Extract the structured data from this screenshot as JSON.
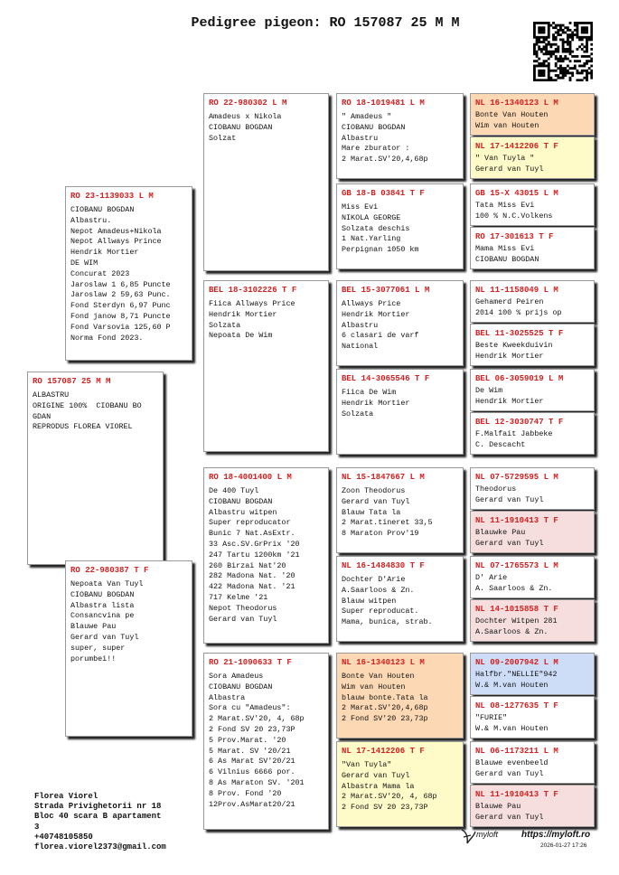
{
  "title": "Pedigree pigeon: RO 157087 25 M M",
  "generations": [
    [
      {
        "ring": "RO 157087 25 M M",
        "lines": [
          "ALBASTRU",
          "ORIGINE 100%  CIOBANU BO",
          "GDAN",
          "REPRODUS FLOREA VIOREL"
        ]
      }
    ],
    [
      {
        "ring": "RO 23-1139033 L M",
        "lines": [
          "CIOBANU BOGDAN",
          "Albastru.",
          "Nepot Amadeus+Nikola",
          "Nepot Allways Prince",
          "Hendrik Mortier",
          "DE WIM",
          "Concurat 2023",
          "Jaroslaw 1 6,85 Puncte",
          "Jaroslaw 2 59,63 Punc.",
          "Fond Sterdyn 6,97 Punc",
          "Fond janow 8,71 Puncte",
          "Fond Varsovia 125,60 P",
          "Norma Fond 2023."
        ]
      },
      {
        "ring": "RO 22-980387 T F",
        "lines": [
          "Nepoata Van Tuyl",
          "CIOBANU BOGDAN",
          "Albastra lista",
          "Consancvina pe",
          "Blauwe Pau",
          "Gerard van Tuyl",
          "super, super",
          "porumbei!!"
        ]
      }
    ],
    [
      {
        "ring": "RO 22-980302 L M",
        "lines": [
          "Amadeus x Nikola",
          "CIOBANU BOGDAN",
          "Solzat"
        ]
      },
      {
        "ring": "BEL 18-3102226 T F",
        "lines": [
          "Fiica Allways Price",
          "Hendrik Mortier",
          "Solzata",
          "Nepoata De Wim"
        ]
      },
      {
        "ring": "RO 18-4001400 L M",
        "lines": [
          "De 400 Tuyl",
          "CIOBANU BOGDAN",
          "Albastru witpen",
          "Super reproducator",
          "Bunic 7 Nat.AsExtr.",
          "33 Asc.SV.GrPrix '20",
          "247 Tartu 1200km '21",
          "260 Birzai Nat'20",
          "282 Madona Nat. '20",
          "422 Madona Nat. '21",
          "717 Kelme '21",
          "Nepot Theodorus",
          "Gerard van Tuyl"
        ]
      },
      {
        "ring": "RO 21-1090633 T F",
        "lines": [
          "Sora Amadeus",
          "CIOBANU BOGDAN",
          "Albastra",
          "Sora cu \"Amadeus\":",
          "2 Marat.SV'20, 4, 68p",
          "2 Fond SV 20 23,73P",
          "5 Prov.Marat. '20",
          "5 Marat. SV '20/21",
          "6 As Marat SV'20/21",
          "6 Vilnius 6666 por.",
          "8 As Maraton SV. '201",
          "8 Prov. Fond '20",
          "12Prov.AsMarat20/21"
        ]
      }
    ],
    [
      {
        "ring": "RO 18-1019481 L M",
        "lines": [
          "\" Amadeus \"",
          "CIOBANU BOGDAN",
          "Albastru",
          "Mare zburator :",
          "2 Marat.SV'20,4,68p"
        ]
      },
      {
        "ring": "GB 18-B 03841 T F",
        "lines": [
          "Miss Evi",
          "NIKOLA GEORGE",
          "Solzata deschis",
          "1 Nat.Yarling",
          "Perpignan 1050 km"
        ]
      },
      {
        "ring": "BEL 15-3077061 L M",
        "lines": [
          "Allways Price",
          "Hendrik Mortier",
          "Albastru",
          "6 clasari de varf",
          "National"
        ]
      },
      {
        "ring": "BEL 14-3065546 T F",
        "lines": [
          "Fiica De Wim",
          "Hendrik Mortier",
          "Solzata"
        ]
      },
      {
        "ring": "NL 15-1847667 L M",
        "lines": [
          "Zoon Theodorus",
          "Gerard van Tuyl",
          "Blauw Tata la",
          "2 Marat.tineret 33,5",
          "8 Maraton Prov'19"
        ]
      },
      {
        "ring": "NL 16-1484830 T F",
        "lines": [
          "Dochter D'Arie",
          "A.Saarloos & Zn.",
          "Blauw witpen",
          "Super reproducat.",
          "Mama, bunica, strab."
        ]
      },
      {
        "ring": "NL 16-1340123 L M",
        "lines": [
          "Bonte Van Houten",
          "Wim van Houten",
          "blauw bonte.Tata la",
          "2 Marat.SV'20,4,68p",
          "2 Fond SV'20 23,73p"
        ]
      },
      {
        "ring": "NL 17-1412206 T F",
        "lines": [
          "\"Van Tuyla\"",
          "Gerard van Tuyl",
          "Albastra Mama la",
          "2 Marat.SV'20, 4, 68p",
          "2 Fond SV 20 23,73P"
        ]
      }
    ],
    [
      {
        "ring": "NL 16-1340123 L M",
        "lines": [
          "Bonte Van Houten",
          "Wim van Houten"
        ]
      },
      {
        "ring": "NL 17-1412206 T F",
        "lines": [
          "\" Van Tuyla \"",
          "Gerard van Tuyl"
        ]
      },
      {
        "ring": "GB 15-X 43015 L M",
        "lines": [
          "Tata Miss Evi",
          "100 % N.C.Volkens"
        ]
      },
      {
        "ring": "RO 17-301613 T F",
        "lines": [
          "Mama Miss Evi",
          "CIOBANU BOGDAN"
        ]
      },
      {
        "ring": "NL 11-1158049 L M",
        "lines": [
          "Gehamerd Peiren",
          "2014 100 % prijs op"
        ]
      },
      {
        "ring": "BEL 11-3025525 T F",
        "lines": [
          "Beste Kweekduivin",
          "Hendrik Mortier"
        ]
      },
      {
        "ring": "BEL 06-3059019 L M",
        "lines": [
          "De Wim",
          "Hendrik Mortier"
        ]
      },
      {
        "ring": "BEL 12-3030747 T F",
        "lines": [
          "F.Malfait Jabbeke",
          "C. Descacht"
        ]
      },
      {
        "ring": "NL 07-5729595 L M",
        "lines": [
          "Theodorus",
          "Gerard van Tuyl"
        ]
      },
      {
        "ring": "NL 11-1910413 T F",
        "lines": [
          "Blauwke Pau",
          "Gerard van Tuyl"
        ]
      },
      {
        "ring": "NL 07-1765573 L M",
        "lines": [
          "D' Arie",
          "A. Saarloos & Zn."
        ]
      },
      {
        "ring": "NL 14-1015858 T F",
        "lines": [
          "Dochter Witpen 281",
          "A.Saarloos & Zn."
        ]
      },
      {
        "ring": "NL 09-2007942 L M",
        "lines": [
          "Halfbr.\"NELLIE\"942",
          "W.& M.van Houten"
        ]
      },
      {
        "ring": "NL 08-1277635 T F",
        "lines": [
          "\"FURIE\"",
          "W.& M.van Houten"
        ]
      },
      {
        "ring": "NL 06-1173211 L M",
        "lines": [
          "Blauwe evenbeeld",
          "Gerard van Tuyl"
        ]
      },
      {
        "ring": "NL 11-1910413 T F",
        "lines": [
          "Blauwe Pau",
          "Gerard van Tuyl"
        ]
      }
    ]
  ],
  "footer": {
    "lines": [
      "Florea Viorel",
      "Strada Privighetorii nr 18",
      "Bloc 40 scara B apartament",
      "3",
      "+40748105850",
      "florea.viorel2373@gmail.com"
    ]
  },
  "brand": "myloft",
  "url": "https://myloft.ro",
  "timestamp": "2026-01-27 17:26"
}
